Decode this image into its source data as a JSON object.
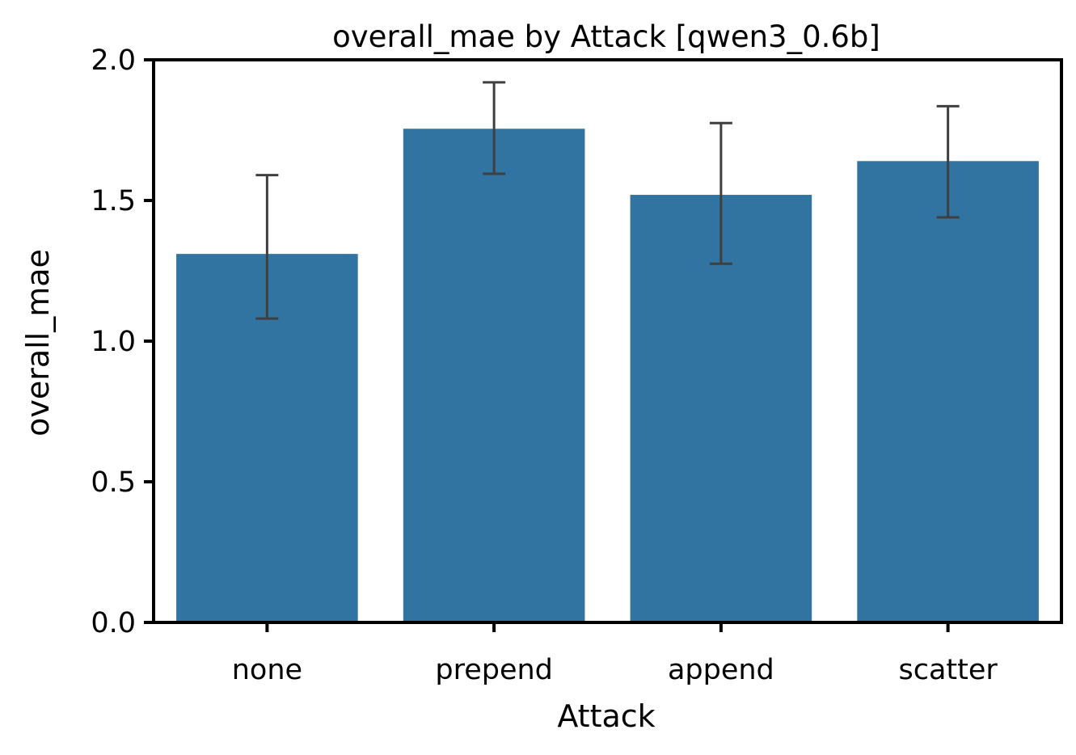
{
  "chart_data": {
    "type": "bar",
    "title": "overall_mae by Attack [qwen3_0.6b]",
    "xlabel": "Attack",
    "ylabel": "overall_mae",
    "categories": [
      "none",
      "prepend",
      "append",
      "scatter"
    ],
    "values": [
      1.31,
      1.755,
      1.52,
      1.64
    ],
    "error_low": [
      1.08,
      1.595,
      1.275,
      1.44
    ],
    "error_high": [
      1.59,
      1.92,
      1.775,
      1.835
    ],
    "ylim": [
      0,
      2.0
    ],
    "yticks": [
      0.0,
      0.5,
      1.0,
      1.5,
      2.0
    ],
    "ytick_labels": [
      "0.0",
      "0.5",
      "1.0",
      "1.5",
      "2.0"
    ],
    "grid": false,
    "colors": {
      "bar": "#3274a1",
      "errorbar": "#3f3f3f",
      "axis": "#000000"
    }
  }
}
